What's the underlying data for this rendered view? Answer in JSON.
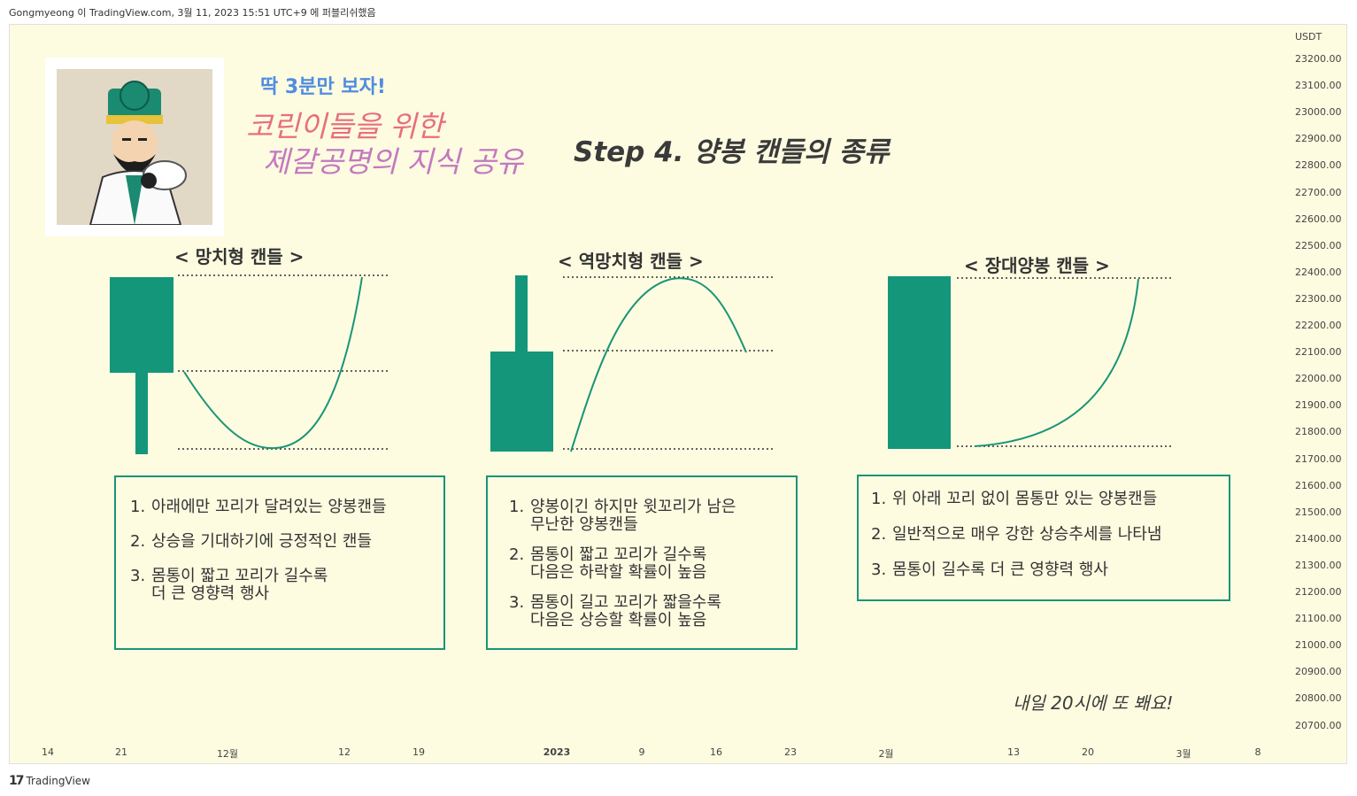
{
  "header": {
    "attribution": "Gongmyeong 이 TradingView.com, 3월 11, 2023 15:51 UTC+9 에 퍼블리쉬했음"
  },
  "footer": {
    "brand": "TradingView"
  },
  "chart": {
    "currency": "USDT",
    "y_ticks": [
      "23200.00",
      "23100.00",
      "23000.00",
      "22900.00",
      "22800.00",
      "22700.00",
      "22600.00",
      "22500.00",
      "22400.00",
      "22300.00",
      "22200.00",
      "22100.00",
      "22000.00",
      "21900.00",
      "21800.00",
      "21700.00",
      "21600.00",
      "21500.00",
      "21400.00",
      "21300.00",
      "21200.00",
      "21100.00",
      "21000.00",
      "20900.00",
      "20800.00",
      "20700.00"
    ],
    "x_ticks": [
      "14",
      "21",
      "12월",
      "12",
      "19",
      "2023",
      "9",
      "16",
      "23",
      "2월",
      "13",
      "20",
      "3월",
      "8"
    ],
    "colors": {
      "candle": "#14967b",
      "background": "#fdfbe0"
    }
  },
  "titles": {
    "tagline": "딱 3분만 보자!",
    "line1": "코린이들을 위한",
    "line2": "제갈공명의 지식 공유",
    "step": "Step 4. 양봉 캔들의 종류"
  },
  "sections": [
    {
      "title": "< 망치형 캔들 >",
      "items": [
        {
          "num": "1.",
          "text": "아래에만 꼬리가 달려있는 양봉캔들"
        },
        {
          "num": "2.",
          "text": "상승을 기대하기에 긍정적인 캔들"
        },
        {
          "num": "3.",
          "text": "몸통이 짧고 꼬리가 길수록\n더 큰 영향력 행사"
        }
      ]
    },
    {
      "title": "< 역망치형 캔들 >",
      "items": [
        {
          "num": "1.",
          "text": "양봉이긴 하지만 윗꼬리가 남은\n무난한 양봉캔들"
        },
        {
          "num": "2.",
          "text": "몸통이 짧고 꼬리가 길수록\n다음은 하락할 확률이 높음"
        },
        {
          "num": "3.",
          "text": "몸통이 길고 꼬리가 짧을수록\n다음은 상승할 확률이 높음"
        }
      ]
    },
    {
      "title": "< 장대양봉 캔들 >",
      "items": [
        {
          "num": "1.",
          "text": "위 아래 꼬리 없이 몸통만 있는 양봉캔들"
        },
        {
          "num": "2.",
          "text": "일반적으로 매우 강한 상승추세를 나타냄"
        },
        {
          "num": "3.",
          "text": "몸통이 길수록 더 큰 영향력 행사"
        }
      ]
    }
  ],
  "signoff": "내일 20시에 또 봬요!",
  "avatar": {
    "icon": "strategist-avatar-icon"
  }
}
